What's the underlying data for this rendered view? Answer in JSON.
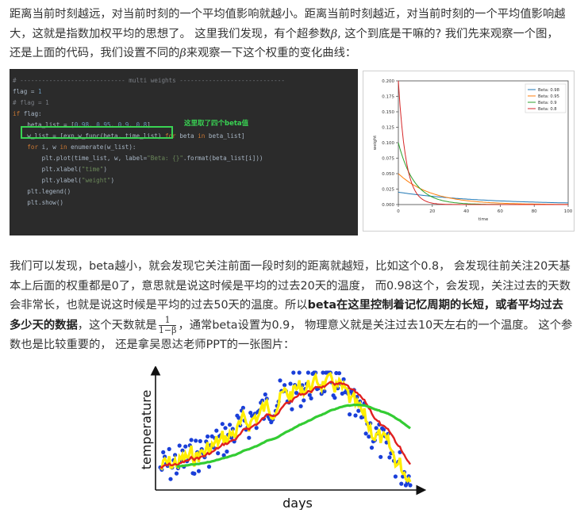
{
  "paragraph1": {
    "t1": "距离当前时刻越远，对当前时刻的一个平均值影响就越小。距离当前时刻越近，对当前时刻的一个平均值影响越大，这就是指数加权平均的思想了。 这里我们发现，有个超参数",
    "beta_symbol": "β",
    "t2": ", 这个到底是干嘛的? 我们先来观察一个图， 还是上面的代码，我们设置不同的",
    "t3": "来观察一下这个权重的变化曲线："
  },
  "code": {
    "lines": [
      "# ----------------------------- multi weights -----------------------------",
      "flag = 1",
      "# flag = 1",
      "if flag:",
      "    beta_list = [0.98, 0.95, 0.9, 0.8]",
      "    w_list = [exp_w_func(beta, time_list) for beta in beta_list]",
      "    for i, w in enumerate(w_list):",
      "        plt.plot(time_list, w, label=\"Beta: {}\".format(beta_list[i]))",
      "        plt.xlabel(\"time\")",
      "        plt.ylabel(\"weight\")",
      "    plt.legend()",
      "    plt.show()"
    ],
    "annotation": "这里取了四个beta值"
  },
  "weight_chart": {
    "xlabel": "time",
    "ylabel": "weight",
    "x_ticks": [
      "0",
      "20",
      "40",
      "60",
      "80",
      "100"
    ],
    "y_ticks": [
      "0.000",
      "0.025",
      "0.050",
      "0.075",
      "0.100",
      "0.125",
      "0.150",
      "0.175",
      "0.200"
    ]
  },
  "chart_data": {
    "type": "line",
    "xlabel": "time",
    "ylabel": "weight",
    "xlim": [
      0,
      100
    ],
    "ylim": [
      0,
      0.2
    ],
    "legend_position": "top-right",
    "series": [
      {
        "name": "Beta: 0.98",
        "color": "#1f77b4",
        "beta": 0.98
      },
      {
        "name": "Beta: 0.95",
        "color": "#ff7f0e",
        "beta": 0.95
      },
      {
        "name": "Beta: 0.9",
        "color": "#2ca02c",
        "beta": 0.9
      },
      {
        "name": "Beta: 0.8",
        "color": "#d62728",
        "beta": 0.8
      }
    ]
  },
  "paragraph2": {
    "t1": "我们可以发现，beta越小，就会发现它关注前面一段时刻的距离就越短，比如这个0.8， 会发现往前关注20天基本上后面的权重都是0了，意思就是说这时候是平均的过去20天的温度， 而0.98这个，会发现，关注过去的天数会非常长，也就是说这时候是平均的过去50天的温度。所以",
    "bold": "beta在这里控制着记忆周期的长短，或者平均过去多少天的数据",
    "t2": "，这个天数就是",
    "frac_num": "1",
    "frac_den": "1−β",
    "t3": "，通常beta设置为0.9， 物理意义就是关注过去10天左右的一个温度。 这个参数也是比较重要的， 还是拿吴恩达老师PPT的一张图片："
  },
  "temperature_figure": {
    "ylabel": "temperature",
    "xlabel": "days",
    "colors": {
      "points": "#1a3fd9",
      "yellow": "#ffee00",
      "red": "#e02020",
      "green": "#33cc33"
    }
  }
}
